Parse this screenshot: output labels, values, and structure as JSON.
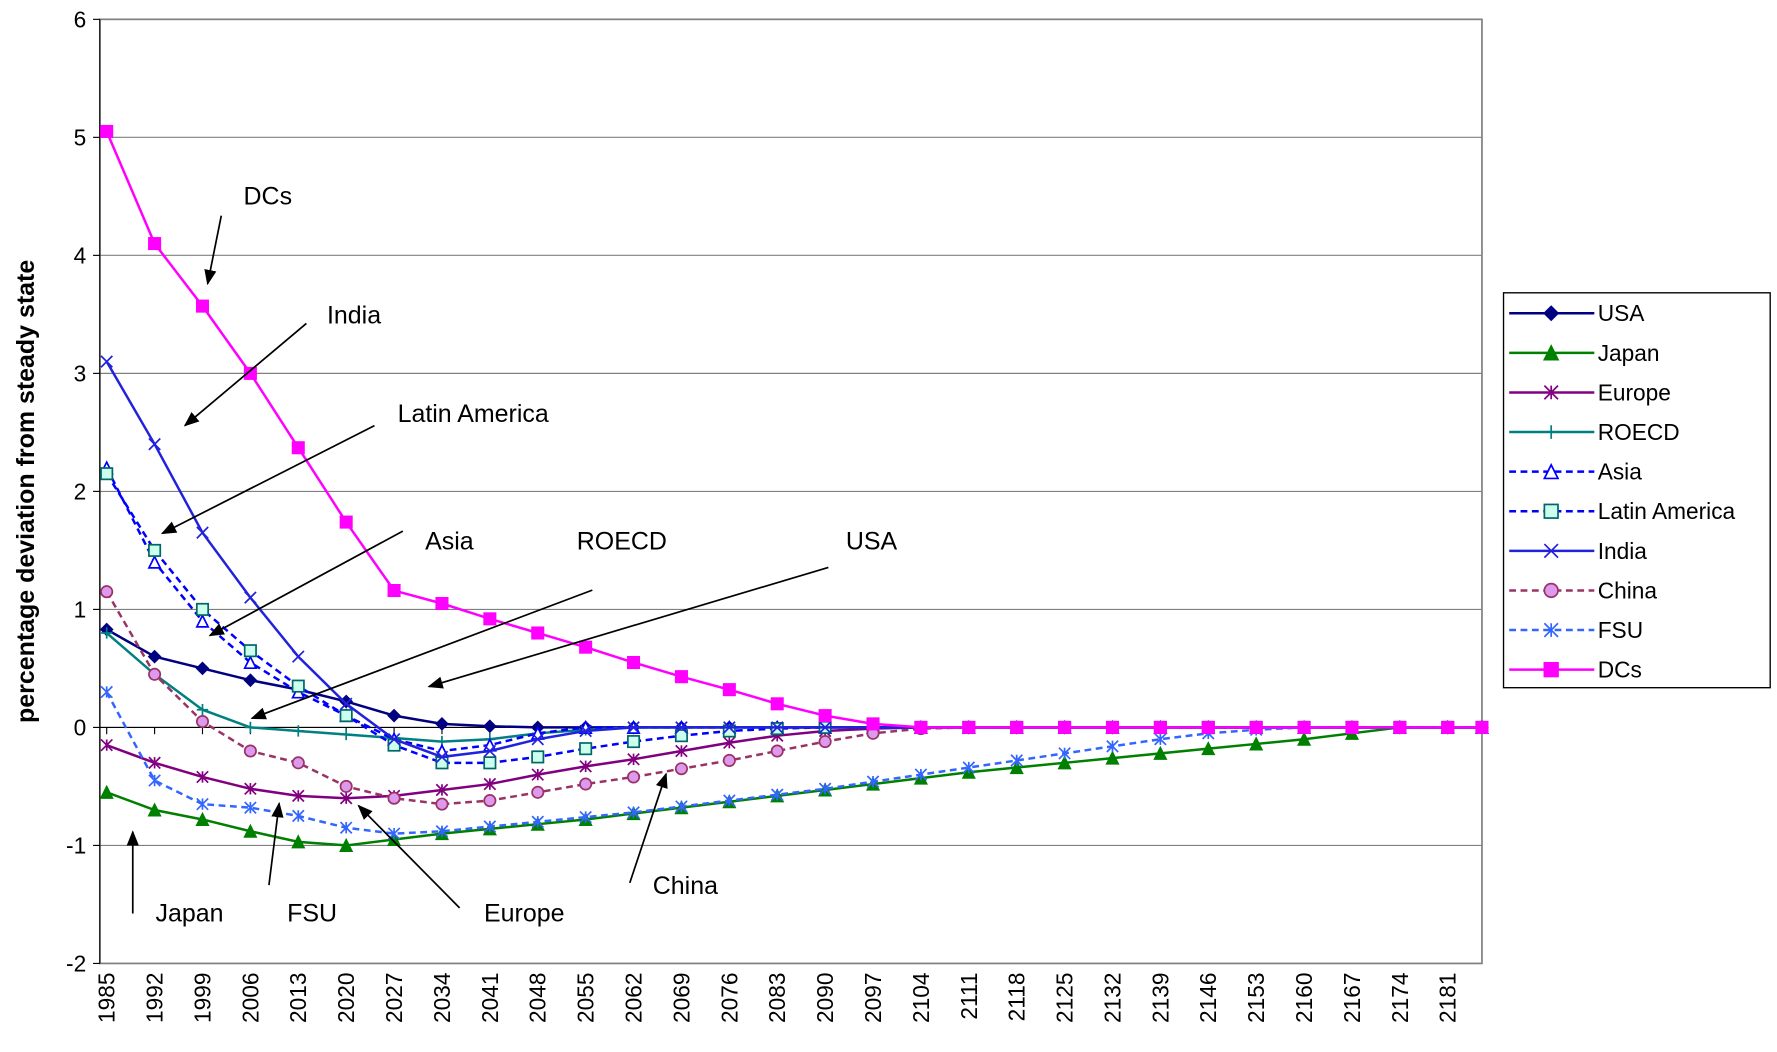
{
  "chart_data": {
    "type": "line",
    "y_label": "percentage deviation from steady state",
    "x": [
      1985,
      1992,
      1999,
      2006,
      2013,
      2020,
      2027,
      2034,
      2041,
      2048,
      2055,
      2062,
      2069,
      2076,
      2083,
      2090,
      2097,
      2104,
      2111,
      2118,
      2125,
      2132,
      2139,
      2146,
      2153,
      2160,
      2167,
      2174,
      2181,
      2186
    ],
    "xlim": [
      1984,
      2186
    ],
    "xticks": [
      1985,
      1992,
      1999,
      2006,
      2013,
      2020,
      2027,
      2034,
      2041,
      2048,
      2055,
      2062,
      2069,
      2076,
      2083,
      2090,
      2097,
      2104,
      2111,
      2118,
      2125,
      2132,
      2139,
      2146,
      2153,
      2160,
      2167,
      2174,
      2181
    ],
    "ylim": [
      -2,
      6
    ],
    "yticks": [
      -2,
      -1,
      0,
      1,
      2,
      3,
      4,
      5,
      6
    ],
    "grid": true,
    "legend": "right",
    "series": [
      {
        "name": "USA",
        "color": "#000080",
        "marker": "diamond",
        "dashed": false,
        "values": [
          0.83,
          0.6,
          0.5,
          0.4,
          0.32,
          0.22,
          0.1,
          0.03,
          0.01,
          0,
          0,
          0,
          0,
          0,
          0,
          0,
          0,
          0,
          0,
          0,
          0,
          0,
          0,
          0,
          0,
          0,
          0,
          0,
          0,
          0
        ]
      },
      {
        "name": "Japan",
        "color": "#008000",
        "marker": "triangle",
        "dashed": false,
        "values": [
          -0.55,
          -0.7,
          -0.78,
          -0.88,
          -0.97,
          -1.0,
          -0.95,
          -0.9,
          -0.86,
          -0.82,
          -0.78,
          -0.73,
          -0.68,
          -0.63,
          -0.58,
          -0.53,
          -0.48,
          -0.43,
          -0.38,
          -0.34,
          -0.3,
          -0.26,
          -0.22,
          -0.18,
          -0.14,
          -0.1,
          -0.05,
          0,
          0,
          0
        ]
      },
      {
        "name": "Europe",
        "color": "#800080",
        "marker": "star",
        "dashed": false,
        "values": [
          -0.15,
          -0.3,
          -0.42,
          -0.52,
          -0.58,
          -0.6,
          -0.58,
          -0.53,
          -0.48,
          -0.4,
          -0.33,
          -0.27,
          -0.2,
          -0.13,
          -0.07,
          -0.03,
          -0.01,
          0,
          0,
          0,
          0,
          0,
          0,
          0,
          0,
          0,
          0,
          0,
          0,
          0
        ]
      },
      {
        "name": "ROECD",
        "color": "#008080",
        "marker": "plus",
        "dashed": false,
        "values": [
          0.8,
          0.45,
          0.15,
          0.0,
          -0.03,
          -0.06,
          -0.09,
          -0.12,
          -0.1,
          -0.05,
          -0.02,
          0,
          0,
          0,
          0,
          0,
          0,
          0,
          0,
          0,
          0,
          0,
          0,
          0,
          0,
          0,
          0,
          0,
          0,
          0
        ]
      },
      {
        "name": "Asia",
        "color": "#0000ff",
        "marker": "open-triangle",
        "dashed": true,
        "values": [
          2.2,
          1.4,
          0.9,
          0.55,
          0.3,
          0.1,
          -0.1,
          -0.2,
          -0.15,
          -0.05,
          0,
          0,
          0,
          0,
          0,
          0,
          0,
          0,
          0,
          0,
          0,
          0,
          0,
          0,
          0,
          0,
          0,
          0,
          0,
          0
        ]
      },
      {
        "name": "Latin America",
        "color": "#0000ff",
        "marker": "square-light",
        "dashed": true,
        "values": [
          2.15,
          1.5,
          1.0,
          0.65,
          0.35,
          0.1,
          -0.15,
          -0.3,
          -0.3,
          -0.25,
          -0.18,
          -0.12,
          -0.07,
          -0.03,
          -0.01,
          0,
          0,
          0,
          0,
          0,
          0,
          0,
          0,
          0,
          0,
          0,
          0,
          0,
          0,
          0
        ]
      },
      {
        "name": "India",
        "color": "#2222dd",
        "marker": "cross",
        "dashed": false,
        "values": [
          3.1,
          2.4,
          1.65,
          1.1,
          0.6,
          0.2,
          -0.1,
          -0.25,
          -0.2,
          -0.1,
          -0.03,
          0,
          0,
          0,
          0,
          0,
          0,
          0,
          0,
          0,
          0,
          0,
          0,
          0,
          0,
          0,
          0,
          0,
          0,
          0
        ]
      },
      {
        "name": "China",
        "color": "#993366",
        "marker": "circle",
        "dashed": true,
        "values": [
          1.15,
          0.45,
          0.05,
          -0.2,
          -0.3,
          -0.5,
          -0.6,
          -0.65,
          -0.62,
          -0.55,
          -0.48,
          -0.42,
          -0.35,
          -0.28,
          -0.2,
          -0.12,
          -0.05,
          -0.01,
          0,
          0,
          0,
          0,
          0,
          0,
          0,
          0,
          0,
          0,
          0,
          0
        ]
      },
      {
        "name": "FSU",
        "color": "#3366ff",
        "marker": "star",
        "dashed": true,
        "values": [
          0.3,
          -0.45,
          -0.65,
          -0.68,
          -0.75,
          -0.85,
          -0.9,
          -0.88,
          -0.84,
          -0.8,
          -0.76,
          -0.72,
          -0.67,
          -0.62,
          -0.57,
          -0.52,
          -0.46,
          -0.4,
          -0.34,
          -0.28,
          -0.22,
          -0.16,
          -0.1,
          -0.05,
          -0.02,
          0,
          0,
          0,
          0,
          0
        ]
      },
      {
        "name": "DCs",
        "color": "#ff00ff",
        "marker": "square",
        "dashed": false,
        "values": [
          5.05,
          4.1,
          3.57,
          3.0,
          2.37,
          1.74,
          1.16,
          1.05,
          0.92,
          0.8,
          0.68,
          0.55,
          0.43,
          0.32,
          0.2,
          0.1,
          0.03,
          0,
          0,
          0,
          0,
          0,
          0,
          0,
          0,
          0,
          0,
          0,
          0,
          0
        ]
      }
    ],
    "annotations": [
      "DCs",
      "India",
      "Latin America",
      "Asia",
      "ROECD",
      "USA",
      "Japan",
      "FSU",
      "Europe",
      "China"
    ]
  }
}
